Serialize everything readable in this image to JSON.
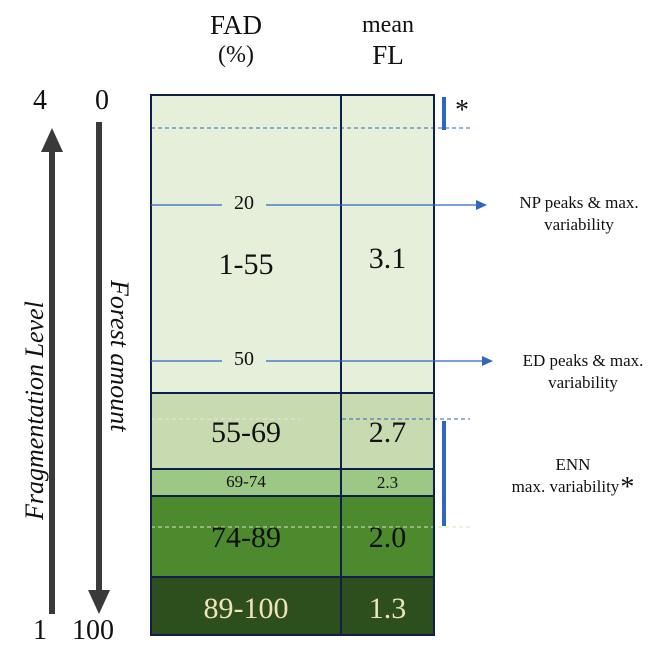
{
  "headers": {
    "fad_line1": "FAD",
    "fad_line2": "(%)",
    "fl_line1": "mean",
    "fl_line2": "FL"
  },
  "left_scale": {
    "fl_top": "4",
    "fl_bottom": "1",
    "forest_top": "0",
    "forest_bottom": "100"
  },
  "axis_labels": {
    "fragmentation": "Fragmentation Level",
    "forest": "Forest amount"
  },
  "bands": [
    {
      "fad": "1-55",
      "fl": "3.1",
      "fill": "#e6efd9",
      "text_color": "#111111"
    },
    {
      "fad": "55-69",
      "fl": "2.7",
      "fill": "#c8dbb0",
      "text_color": "#111111"
    },
    {
      "fad": "69-74",
      "fl": "2.3",
      "fill": "#9cc784",
      "text_color": "#111111"
    },
    {
      "fad": "74-89",
      "fl": "2.0",
      "fill": "#4d8a2d",
      "text_color": "#111111"
    },
    {
      "fad": "89-100",
      "fl": "1.3",
      "fill": "#2d4f1e",
      "text_color": "#f2e2b8"
    }
  ],
  "markers": [
    {
      "value": "20",
      "label_line1": "NP peaks & max.",
      "label_line2": "variability"
    },
    {
      "value": "50",
      "label_line1": "ED peaks & max.",
      "label_line2": "variability"
    }
  ],
  "enn_annotation": {
    "line1": "ENN",
    "line2": "max. variability",
    "star": "*"
  },
  "top_star": "*",
  "colors": {
    "accent_blue": "#2f66c4",
    "border_navy": "#0e1f4a"
  }
}
